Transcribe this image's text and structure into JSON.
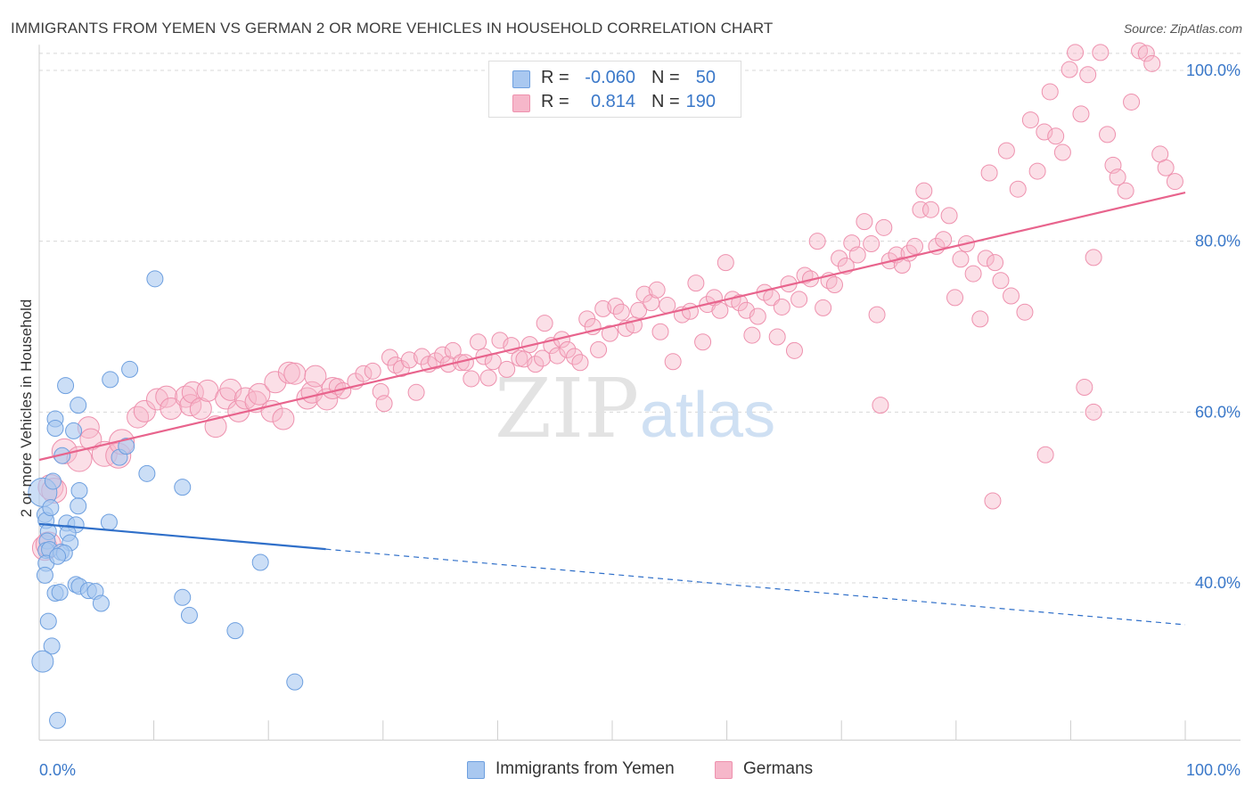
{
  "title": "IMMIGRANTS FROM YEMEN VS GERMAN 2 OR MORE VEHICLES IN HOUSEHOLD CORRELATION CHART",
  "source": "Source: ZipAtlas.com",
  "watermark": {
    "zip": "ZIP",
    "atlas": "atlas"
  },
  "legend": {
    "rows": [
      {
        "r_label": "R =",
        "r_value": "-0.060",
        "n_label": "N =",
        "n_value": "50"
      },
      {
        "r_label": "R =",
        "r_value": "0.814",
        "n_label": "N =",
        "n_value": "190"
      }
    ]
  },
  "bottom_legend": [
    "Immigrants from Yemen",
    "Germans"
  ],
  "colors": {
    "yemen_fill": "#a9c8f0",
    "yemen_stroke": "#6d9fdf",
    "yemen_line": "#2f6fc9",
    "german_fill": "#f6b7ca",
    "german_stroke": "#ee91ae",
    "german_line": "#e8648d",
    "tick_label": "#3a78c9",
    "grid": "#d8d8d8"
  },
  "chart_data": {
    "type": "scatter",
    "title": "IMMIGRANTS FROM YEMEN VS GERMAN 2 OR MORE VEHICLES IN HOUSEHOLD CORRELATION CHART",
    "xlabel": "",
    "ylabel": "2 or more Vehicles in Household",
    "xlim": [
      0,
      100
    ],
    "ylim": [
      21.6,
      103
    ],
    "x_tick_labels": [
      {
        "value": 0,
        "label": "0.0%"
      },
      {
        "value": 100,
        "label": "100.0%"
      }
    ],
    "y_ticks": [
      {
        "value": 40,
        "label": "40.0%"
      },
      {
        "value": 60,
        "label": "60.0%"
      },
      {
        "value": 80,
        "label": "80.0%"
      },
      {
        "value": 100,
        "label": "100.0%"
      }
    ],
    "y_grid": [
      40,
      60,
      80,
      100,
      102
    ],
    "series": [
      {
        "name": "Immigrants from Yemen",
        "trend": {
          "x0": 0,
          "y0": 46.9,
          "x1": 100,
          "y1": 35.1,
          "solid_until_x": 25
        },
        "points": [
          [
            0.3,
            50.6,
            16
          ],
          [
            0.5,
            48.0,
            9
          ],
          [
            0.6,
            47.3,
            9
          ],
          [
            1.2,
            51.9,
            9
          ],
          [
            1.0,
            48.8,
            9
          ],
          [
            0.8,
            46.0,
            9
          ],
          [
            0.7,
            44.9,
            9
          ],
          [
            0.6,
            43.8,
            9
          ],
          [
            0.9,
            43.9,
            9
          ],
          [
            0.6,
            42.3,
            9
          ],
          [
            0.5,
            40.9,
            9
          ],
          [
            1.4,
            38.8,
            9
          ],
          [
            1.8,
            38.9,
            9
          ],
          [
            0.8,
            35.5,
            9
          ],
          [
            1.1,
            32.6,
            9
          ],
          [
            0.3,
            30.8,
            12
          ],
          [
            1.6,
            23.9,
            9
          ],
          [
            1.4,
            59.2,
            9
          ],
          [
            1.4,
            58.1,
            9
          ],
          [
            2.3,
            63.1,
            9
          ],
          [
            2.0,
            54.9,
            9
          ],
          [
            3.0,
            57.8,
            9
          ],
          [
            3.4,
            60.8,
            9
          ],
          [
            3.5,
            50.8,
            9
          ],
          [
            3.4,
            49.0,
            9
          ],
          [
            2.4,
            47.0,
            9
          ],
          [
            3.2,
            46.8,
            9
          ],
          [
            2.5,
            45.8,
            9
          ],
          [
            2.7,
            44.7,
            9
          ],
          [
            1.9,
            43.6,
            9
          ],
          [
            2.2,
            43.5,
            9
          ],
          [
            1.6,
            43.1,
            9
          ],
          [
            3.2,
            39.8,
            9
          ],
          [
            3.5,
            39.6,
            9
          ],
          [
            4.3,
            39.1,
            9
          ],
          [
            4.9,
            39.0,
            9
          ],
          [
            5.4,
            37.6,
            9
          ],
          [
            6.1,
            47.1,
            9
          ],
          [
            6.2,
            63.8,
            9
          ],
          [
            7.0,
            54.7,
            9
          ],
          [
            7.9,
            65.0,
            9
          ],
          [
            7.6,
            56.0,
            9
          ],
          [
            9.4,
            52.8,
            9
          ],
          [
            10.1,
            75.6,
            9
          ],
          [
            12.5,
            51.2,
            9
          ],
          [
            12.5,
            38.3,
            9
          ],
          [
            13.1,
            36.2,
            9
          ],
          [
            17.1,
            34.4,
            9
          ],
          [
            19.3,
            42.4,
            9
          ],
          [
            22.3,
            28.4,
            9
          ]
        ]
      },
      {
        "name": "Germans",
        "trend": {
          "x0": 0,
          "y0": 54.4,
          "x1": 100,
          "y1": 85.7
        },
        "points": [
          [
            0.5,
            44.1,
            14
          ],
          [
            0.8,
            44.5,
            14
          ],
          [
            1.0,
            51.2,
            14
          ],
          [
            1.3,
            50.8,
            14
          ],
          [
            2.2,
            55.4,
            14
          ],
          [
            3.5,
            54.5,
            14
          ],
          [
            4.3,
            58.2,
            12
          ],
          [
            4.5,
            56.8,
            12
          ],
          [
            5.7,
            55.1,
            14
          ],
          [
            6.9,
            54.9,
            14
          ],
          [
            7.2,
            56.5,
            14
          ],
          [
            8.6,
            59.4,
            12
          ],
          [
            9.2,
            60.1,
            12
          ],
          [
            10.3,
            61.5,
            12
          ],
          [
            11.1,
            61.8,
            12
          ],
          [
            11.5,
            60.4,
            12
          ],
          [
            12.8,
            61.8,
            12
          ],
          [
            13.2,
            60.8,
            12
          ],
          [
            13.4,
            62.3,
            12
          ],
          [
            14.1,
            60.4,
            12
          ],
          [
            14.7,
            62.5,
            12
          ],
          [
            15.4,
            58.3,
            12
          ],
          [
            16.3,
            61.6,
            12
          ],
          [
            16.7,
            62.6,
            12
          ],
          [
            17.4,
            60.1,
            12
          ],
          [
            18.0,
            61.6,
            12
          ],
          [
            18.9,
            61.2,
            12
          ],
          [
            19.2,
            62.1,
            12
          ],
          [
            20.3,
            60.1,
            12
          ],
          [
            20.6,
            63.5,
            12
          ],
          [
            21.3,
            59.2,
            12
          ],
          [
            21.8,
            64.6,
            12
          ],
          [
            22.3,
            64.5,
            12
          ],
          [
            23.4,
            61.6,
            12
          ],
          [
            23.8,
            62.3,
            12
          ],
          [
            24.1,
            64.2,
            12
          ],
          [
            25.1,
            61.5,
            12
          ],
          [
            25.6,
            62.8,
            12
          ],
          [
            26.0,
            63.0,
            9
          ],
          [
            26.5,
            62.5,
            9
          ],
          [
            27.6,
            63.6,
            9
          ],
          [
            28.3,
            64.5,
            9
          ],
          [
            29.1,
            64.8,
            9
          ],
          [
            29.8,
            62.4,
            9
          ],
          [
            30.1,
            61.0,
            9
          ],
          [
            30.6,
            66.4,
            9
          ],
          [
            31.1,
            65.5,
            9
          ],
          [
            31.6,
            65.1,
            9
          ],
          [
            32.3,
            66.1,
            9
          ],
          [
            32.9,
            62.3,
            9
          ],
          [
            33.4,
            66.5,
            9
          ],
          [
            34.0,
            65.6,
            9
          ],
          [
            34.6,
            66.0,
            9
          ],
          [
            35.2,
            66.7,
            9
          ],
          [
            35.7,
            65.6,
            9
          ],
          [
            36.1,
            67.2,
            9
          ],
          [
            36.8,
            65.8,
            9
          ],
          [
            37.2,
            65.8,
            9
          ],
          [
            37.7,
            63.9,
            9
          ],
          [
            38.3,
            68.2,
            9
          ],
          [
            38.8,
            66.5,
            9
          ],
          [
            39.2,
            64.0,
            9
          ],
          [
            39.6,
            65.9,
            9
          ],
          [
            40.2,
            68.4,
            9
          ],
          [
            40.8,
            65.0,
            9
          ],
          [
            41.2,
            67.8,
            9
          ],
          [
            41.9,
            66.3,
            9
          ],
          [
            42.3,
            66.2,
            9
          ],
          [
            42.8,
            67.9,
            9
          ],
          [
            43.3,
            65.6,
            9
          ],
          [
            43.9,
            66.3,
            9
          ],
          [
            44.1,
            70.4,
            9
          ],
          [
            44.7,
            67.8,
            9
          ],
          [
            45.2,
            66.6,
            9
          ],
          [
            45.6,
            68.5,
            9
          ],
          [
            46.1,
            67.3,
            9
          ],
          [
            46.7,
            66.5,
            9
          ],
          [
            47.2,
            65.8,
            9
          ],
          [
            47.8,
            70.9,
            9
          ],
          [
            48.3,
            70.0,
            9
          ],
          [
            48.8,
            67.3,
            9
          ],
          [
            49.2,
            72.1,
            9
          ],
          [
            49.8,
            69.2,
            9
          ],
          [
            50.3,
            72.4,
            9
          ],
          [
            50.8,
            71.7,
            9
          ],
          [
            51.2,
            69.8,
            9
          ],
          [
            51.9,
            70.2,
            9
          ],
          [
            52.3,
            71.9,
            9
          ],
          [
            52.8,
            73.8,
            9
          ],
          [
            53.4,
            72.8,
            9
          ],
          [
            53.9,
            74.3,
            9
          ],
          [
            54.2,
            69.4,
            9
          ],
          [
            54.8,
            72.5,
            9
          ],
          [
            55.3,
            65.9,
            9
          ],
          [
            56.1,
            71.4,
            9
          ],
          [
            56.8,
            71.8,
            9
          ],
          [
            57.3,
            75.1,
            9
          ],
          [
            57.9,
            68.2,
            9
          ],
          [
            58.3,
            72.6,
            9
          ],
          [
            58.9,
            73.4,
            9
          ],
          [
            59.4,
            71.9,
            9
          ],
          [
            59.9,
            77.5,
            9
          ],
          [
            60.5,
            73.2,
            9
          ],
          [
            61.1,
            72.8,
            9
          ],
          [
            61.7,
            71.9,
            9
          ],
          [
            62.2,
            69.0,
            9
          ],
          [
            62.7,
            71.2,
            9
          ],
          [
            63.3,
            74.0,
            9
          ],
          [
            63.9,
            73.4,
            9
          ],
          [
            64.4,
            68.8,
            9
          ],
          [
            64.8,
            72.3,
            9
          ],
          [
            65.4,
            75.0,
            9
          ],
          [
            65.9,
            67.2,
            9
          ],
          [
            66.3,
            73.2,
            9
          ],
          [
            66.8,
            76.0,
            9
          ],
          [
            67.3,
            75.6,
            9
          ],
          [
            67.9,
            80.0,
            9
          ],
          [
            68.4,
            72.2,
            9
          ],
          [
            68.9,
            75.4,
            9
          ],
          [
            69.4,
            74.9,
            9
          ],
          [
            69.8,
            78.0,
            9
          ],
          [
            70.4,
            77.1,
            9
          ],
          [
            70.9,
            79.8,
            9
          ],
          [
            71.4,
            78.4,
            9
          ],
          [
            72.0,
            82.3,
            9
          ],
          [
            72.6,
            79.7,
            9
          ],
          [
            73.1,
            71.4,
            9
          ],
          [
            73.7,
            81.6,
            9
          ],
          [
            74.2,
            77.7,
            9
          ],
          [
            74.8,
            78.4,
            9
          ],
          [
            75.3,
            77.2,
            9
          ],
          [
            75.9,
            78.6,
            9
          ],
          [
            76.4,
            79.4,
            9
          ],
          [
            76.9,
            83.7,
            9
          ],
          [
            77.2,
            85.9,
            9
          ],
          [
            77.8,
            83.7,
            9
          ],
          [
            78.3,
            79.4,
            9
          ],
          [
            78.9,
            80.2,
            9
          ],
          [
            79.4,
            83.0,
            9
          ],
          [
            79.9,
            73.4,
            9
          ],
          [
            80.4,
            77.9,
            9
          ],
          [
            80.9,
            79.7,
            9
          ],
          [
            81.5,
            76.2,
            9
          ],
          [
            82.1,
            70.9,
            9
          ],
          [
            82.6,
            78.0,
            9
          ],
          [
            82.9,
            88.0,
            9
          ],
          [
            83.4,
            77.5,
            9
          ],
          [
            83.9,
            75.4,
            9
          ],
          [
            84.4,
            90.6,
            9
          ],
          [
            84.8,
            73.6,
            9
          ],
          [
            85.4,
            86.1,
            9
          ],
          [
            86.0,
            71.7,
            9
          ],
          [
            86.5,
            94.2,
            9
          ],
          [
            87.1,
            88.2,
            9
          ],
          [
            87.7,
            92.8,
            9
          ],
          [
            88.2,
            97.5,
            9
          ],
          [
            88.7,
            92.3,
            9
          ],
          [
            89.3,
            90.4,
            9
          ],
          [
            89.9,
            100.1,
            9
          ],
          [
            90.4,
            102.1,
            9
          ],
          [
            90.9,
            94.9,
            9
          ],
          [
            91.5,
            99.5,
            9
          ],
          [
            92.0,
            78.1,
            9
          ],
          [
            92.6,
            102.1,
            9
          ],
          [
            93.2,
            92.5,
            9
          ],
          [
            93.7,
            88.9,
            9
          ],
          [
            94.1,
            87.5,
            9
          ],
          [
            94.8,
            85.9,
            9
          ],
          [
            95.3,
            96.3,
            9
          ],
          [
            96.0,
            102.3,
            9
          ],
          [
            96.6,
            102.0,
            9
          ],
          [
            97.1,
            100.8,
            9
          ],
          [
            97.8,
            90.2,
            9
          ],
          [
            98.3,
            88.6,
            9
          ],
          [
            99.1,
            87.0,
            9
          ],
          [
            73.4,
            60.8,
            9
          ],
          [
            83.2,
            49.6,
            9
          ],
          [
            87.8,
            55.0,
            9
          ],
          [
            91.2,
            62.9,
            9
          ],
          [
            92.0,
            60.0,
            9
          ]
        ]
      }
    ]
  }
}
